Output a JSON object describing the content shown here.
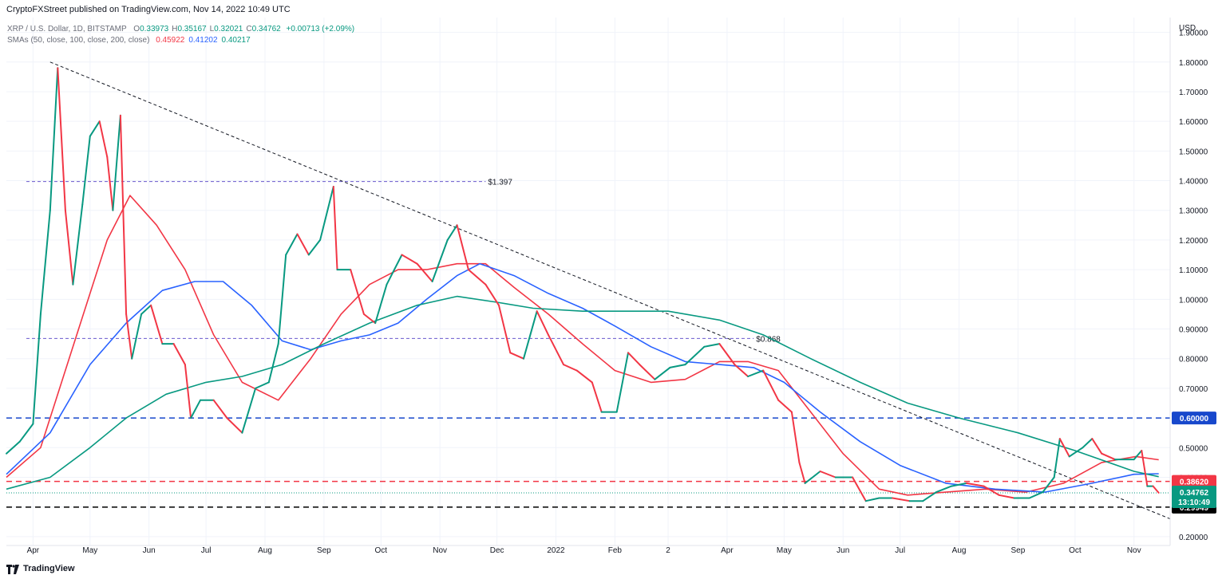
{
  "header": {
    "publisher_line": "CryptoFXStreet published on TradingView.com, Nov 14, 2022 10:49 UTC"
  },
  "footer": {
    "brand": "TradingView",
    "logo_icon": "tradingview-logo-icon"
  },
  "legend": {
    "symbol": "XRP / U.S. Dollar, 1D, BITSTAMP",
    "ohlc": [
      {
        "key": "O",
        "value": "0.33973"
      },
      {
        "key": "H",
        "value": "0.35167"
      },
      {
        "key": "L",
        "value": "0.32021"
      },
      {
        "key": "C",
        "value": "0.34762"
      }
    ],
    "change": "+0.00713 (+2.09%)",
    "sma_label": "SMAs (50, close, 100, close, 200, close)",
    "sma_values": [
      {
        "value": "0.45922",
        "color": "#f23645"
      },
      {
        "value": "0.41202",
        "color": "#2962ff"
      },
      {
        "value": "0.40217",
        "color": "#089981"
      }
    ]
  },
  "chart_data": {
    "type": "line",
    "title": "XRP / U.S. Dollar, 1D, BITSTAMP",
    "currency_label": "USD",
    "ylim": [
      0.17,
      1.95
    ],
    "y_ticks": [
      "0.20000",
      "0.30000",
      "0.40000",
      "0.50000",
      "0.60000",
      "0.70000",
      "0.80000",
      "0.90000",
      "1.00000",
      "1.10000",
      "1.20000",
      "1.30000",
      "1.40000",
      "1.50000",
      "1.60000",
      "1.70000",
      "1.80000",
      "1.90000"
    ],
    "x_ticks": [
      {
        "label": "Apr",
        "date": "2021-04-01"
      },
      {
        "label": "May",
        "date": "2021-05-01"
      },
      {
        "label": "Jun",
        "date": "2021-06-01"
      },
      {
        "label": "Jul",
        "date": "2021-07-01"
      },
      {
        "label": "Aug",
        "date": "2021-08-01"
      },
      {
        "label": "Sep",
        "date": "2021-09-01"
      },
      {
        "label": "Oct",
        "date": "2021-10-01"
      },
      {
        "label": "Nov",
        "date": "2021-11-01"
      },
      {
        "label": "Dec",
        "date": "2021-12-01"
      },
      {
        "label": "2022",
        "date": "2022-01-01"
      },
      {
        "label": "Feb",
        "date": "2022-02-01"
      },
      {
        "label": "2",
        "date": "2022-03-01"
      },
      {
        "label": "Apr",
        "date": "2022-04-01"
      },
      {
        "label": "May",
        "date": "2022-05-01"
      },
      {
        "label": "Jun",
        "date": "2022-06-01"
      },
      {
        "label": "Jul",
        "date": "2022-07-01"
      },
      {
        "label": "Aug",
        "date": "2022-08-01"
      },
      {
        "label": "Sep",
        "date": "2022-09-01"
      },
      {
        "label": "Oct",
        "date": "2022-10-01"
      },
      {
        "label": "Nov",
        "date": "2022-11-01"
      }
    ],
    "price_points": [
      [
        "2021-03-18",
        0.48
      ],
      [
        "2021-03-25",
        0.52
      ],
      [
        "2021-04-01",
        0.58
      ],
      [
        "2021-04-05",
        0.95
      ],
      [
        "2021-04-10",
        1.3
      ],
      [
        "2021-04-14",
        1.78
      ],
      [
        "2021-04-18",
        1.3
      ],
      [
        "2021-04-22",
        1.05
      ],
      [
        "2021-04-27",
        1.32
      ],
      [
        "2021-05-01",
        1.55
      ],
      [
        "2021-05-06",
        1.6
      ],
      [
        "2021-05-10",
        1.48
      ],
      [
        "2021-05-13",
        1.3
      ],
      [
        "2021-05-17",
        1.62
      ],
      [
        "2021-05-20",
        0.95
      ],
      [
        "2021-05-23",
        0.8
      ],
      [
        "2021-05-28",
        0.95
      ],
      [
        "2021-06-02",
        0.98
      ],
      [
        "2021-06-08",
        0.85
      ],
      [
        "2021-06-14",
        0.85
      ],
      [
        "2021-06-20",
        0.78
      ],
      [
        "2021-06-23",
        0.6
      ],
      [
        "2021-06-28",
        0.66
      ],
      [
        "2021-07-05",
        0.66
      ],
      [
        "2021-07-12",
        0.6
      ],
      [
        "2021-07-20",
        0.55
      ],
      [
        "2021-07-27",
        0.7
      ],
      [
        "2021-08-03",
        0.72
      ],
      [
        "2021-08-08",
        0.85
      ],
      [
        "2021-08-12",
        1.15
      ],
      [
        "2021-08-18",
        1.22
      ],
      [
        "2021-08-24",
        1.15
      ],
      [
        "2021-08-30",
        1.2
      ],
      [
        "2021-09-06",
        1.38
      ],
      [
        "2021-09-08",
        1.1
      ],
      [
        "2021-09-15",
        1.1
      ],
      [
        "2021-09-22",
        0.95
      ],
      [
        "2021-09-28",
        0.92
      ],
      [
        "2021-10-04",
        1.05
      ],
      [
        "2021-10-12",
        1.15
      ],
      [
        "2021-10-20",
        1.12
      ],
      [
        "2021-10-28",
        1.06
      ],
      [
        "2021-11-05",
        1.2
      ],
      [
        "2021-11-10",
        1.25
      ],
      [
        "2021-11-16",
        1.1
      ],
      [
        "2021-11-25",
        1.05
      ],
      [
        "2021-12-02",
        0.98
      ],
      [
        "2021-12-08",
        0.82
      ],
      [
        "2021-12-15",
        0.8
      ],
      [
        "2021-12-22",
        0.96
      ],
      [
        "2021-12-28",
        0.88
      ],
      [
        "2022-01-05",
        0.78
      ],
      [
        "2022-01-12",
        0.76
      ],
      [
        "2022-01-20",
        0.72
      ],
      [
        "2022-01-25",
        0.62
      ],
      [
        "2022-02-02",
        0.62
      ],
      [
        "2022-02-08",
        0.82
      ],
      [
        "2022-02-14",
        0.78
      ],
      [
        "2022-02-22",
        0.73
      ],
      [
        "2022-03-02",
        0.77
      ],
      [
        "2022-03-10",
        0.78
      ],
      [
        "2022-03-20",
        0.84
      ],
      [
        "2022-03-28",
        0.85
      ],
      [
        "2022-04-05",
        0.78
      ],
      [
        "2022-04-12",
        0.74
      ],
      [
        "2022-04-20",
        0.76
      ],
      [
        "2022-04-28",
        0.66
      ],
      [
        "2022-05-05",
        0.62
      ],
      [
        "2022-05-09",
        0.45
      ],
      [
        "2022-05-12",
        0.38
      ],
      [
        "2022-05-20",
        0.42
      ],
      [
        "2022-05-28",
        0.4
      ],
      [
        "2022-06-06",
        0.4
      ],
      [
        "2022-06-13",
        0.32
      ],
      [
        "2022-06-20",
        0.33
      ],
      [
        "2022-06-27",
        0.33
      ],
      [
        "2022-07-06",
        0.32
      ],
      [
        "2022-07-13",
        0.32
      ],
      [
        "2022-07-20",
        0.35
      ],
      [
        "2022-07-28",
        0.37
      ],
      [
        "2022-08-05",
        0.38
      ],
      [
        "2022-08-14",
        0.37
      ],
      [
        "2022-08-22",
        0.34
      ],
      [
        "2022-08-30",
        0.33
      ],
      [
        "2022-09-07",
        0.33
      ],
      [
        "2022-09-14",
        0.35
      ],
      [
        "2022-09-20",
        0.4
      ],
      [
        "2022-09-23",
        0.53
      ],
      [
        "2022-09-28",
        0.47
      ],
      [
        "2022-10-05",
        0.5
      ],
      [
        "2022-10-10",
        0.53
      ],
      [
        "2022-10-15",
        0.48
      ],
      [
        "2022-10-22",
        0.46
      ],
      [
        "2022-11-01",
        0.46
      ],
      [
        "2022-11-05",
        0.49
      ],
      [
        "2022-11-08",
        0.37
      ],
      [
        "2022-11-11",
        0.37
      ],
      [
        "2022-11-14",
        0.34762
      ]
    ],
    "series": [
      {
        "name": "SMA 50",
        "color": "#f23645",
        "values": [
          [
            "2021-03-18",
            0.4
          ],
          [
            "2021-04-05",
            0.5
          ],
          [
            "2021-04-25",
            0.9
          ],
          [
            "2021-05-10",
            1.2
          ],
          [
            "2021-05-22",
            1.35
          ],
          [
            "2021-06-05",
            1.25
          ],
          [
            "2021-06-20",
            1.1
          ],
          [
            "2021-07-05",
            0.88
          ],
          [
            "2021-07-20",
            0.72
          ],
          [
            "2021-08-08",
            0.66
          ],
          [
            "2021-08-25",
            0.8
          ],
          [
            "2021-09-10",
            0.95
          ],
          [
            "2021-09-25",
            1.05
          ],
          [
            "2021-10-10",
            1.1
          ],
          [
            "2021-10-25",
            1.1
          ],
          [
            "2021-11-10",
            1.12
          ],
          [
            "2021-11-25",
            1.12
          ],
          [
            "2021-12-10",
            1.04
          ],
          [
            "2021-12-28",
            0.95
          ],
          [
            "2022-01-15",
            0.85
          ],
          [
            "2022-02-01",
            0.76
          ],
          [
            "2022-02-20",
            0.72
          ],
          [
            "2022-03-10",
            0.73
          ],
          [
            "2022-03-28",
            0.79
          ],
          [
            "2022-04-12",
            0.79
          ],
          [
            "2022-04-28",
            0.76
          ],
          [
            "2022-05-15",
            0.62
          ],
          [
            "2022-06-01",
            0.48
          ],
          [
            "2022-06-20",
            0.36
          ],
          [
            "2022-07-05",
            0.34
          ],
          [
            "2022-07-25",
            0.35
          ],
          [
            "2022-08-15",
            0.36
          ],
          [
            "2022-09-05",
            0.35
          ],
          [
            "2022-09-25",
            0.38
          ],
          [
            "2022-10-15",
            0.45
          ],
          [
            "2022-11-02",
            0.47
          ],
          [
            "2022-11-14",
            0.459
          ]
        ]
      },
      {
        "name": "SMA 100",
        "color": "#2962ff",
        "values": [
          [
            "2021-03-18",
            0.41
          ],
          [
            "2021-04-10",
            0.55
          ],
          [
            "2021-05-01",
            0.78
          ],
          [
            "2021-05-20",
            0.92
          ],
          [
            "2021-06-08",
            1.03
          ],
          [
            "2021-06-25",
            1.06
          ],
          [
            "2021-07-10",
            1.06
          ],
          [
            "2021-07-25",
            0.98
          ],
          [
            "2021-08-10",
            0.86
          ],
          [
            "2021-08-25",
            0.83
          ],
          [
            "2021-09-10",
            0.86
          ],
          [
            "2021-09-25",
            0.88
          ],
          [
            "2021-10-10",
            0.92
          ],
          [
            "2021-10-25",
            1.0
          ],
          [
            "2021-11-10",
            1.08
          ],
          [
            "2021-11-22",
            1.12
          ],
          [
            "2021-12-10",
            1.08
          ],
          [
            "2021-12-28",
            1.02
          ],
          [
            "2022-01-15",
            0.97
          ],
          [
            "2022-02-01",
            0.91
          ],
          [
            "2022-02-20",
            0.84
          ],
          [
            "2022-03-10",
            0.79
          ],
          [
            "2022-03-28",
            0.78
          ],
          [
            "2022-04-15",
            0.77
          ],
          [
            "2022-05-01",
            0.72
          ],
          [
            "2022-05-20",
            0.62
          ],
          [
            "2022-06-10",
            0.52
          ],
          [
            "2022-07-01",
            0.44
          ],
          [
            "2022-07-25",
            0.38
          ],
          [
            "2022-08-20",
            0.36
          ],
          [
            "2022-09-15",
            0.35
          ],
          [
            "2022-10-10",
            0.38
          ],
          [
            "2022-11-01",
            0.41
          ],
          [
            "2022-11-14",
            0.412
          ]
        ]
      },
      {
        "name": "SMA 200",
        "color": "#089981",
        "values": [
          [
            "2021-03-18",
            0.36
          ],
          [
            "2021-04-10",
            0.4
          ],
          [
            "2021-05-01",
            0.5
          ],
          [
            "2021-05-20",
            0.6
          ],
          [
            "2021-06-10",
            0.68
          ],
          [
            "2021-07-01",
            0.72
          ],
          [
            "2021-07-20",
            0.74
          ],
          [
            "2021-08-10",
            0.78
          ],
          [
            "2021-09-01",
            0.85
          ],
          [
            "2021-09-25",
            0.92
          ],
          [
            "2021-10-20",
            0.98
          ],
          [
            "2021-11-10",
            1.01
          ],
          [
            "2021-12-01",
            0.99
          ],
          [
            "2021-12-20",
            0.97
          ],
          [
            "2022-01-15",
            0.96
          ],
          [
            "2022-02-10",
            0.96
          ],
          [
            "2022-03-01",
            0.96
          ],
          [
            "2022-03-28",
            0.93
          ],
          [
            "2022-04-20",
            0.88
          ],
          [
            "2022-05-15",
            0.8
          ],
          [
            "2022-06-10",
            0.72
          ],
          [
            "2022-07-05",
            0.65
          ],
          [
            "2022-08-01",
            0.6
          ],
          [
            "2022-09-01",
            0.55
          ],
          [
            "2022-10-01",
            0.49
          ],
          [
            "2022-11-01",
            0.42
          ],
          [
            "2022-11-14",
            0.402
          ]
        ]
      }
    ],
    "horizontal_levels": [
      {
        "value": 0.6,
        "color": "#1848cc",
        "style": "dashed",
        "badge": "0.60000"
      },
      {
        "value": 0.3862,
        "color": "#f23645",
        "style": "dashed",
        "badge": "0.38620"
      },
      {
        "value": 0.29949,
        "color": "#000000",
        "style": "dashed",
        "badge": "0.29949"
      }
    ],
    "last_price_badge": {
      "value": 0.34762,
      "label": "0.34762",
      "countdown": "13:10:49",
      "color": "#089981"
    },
    "annotations": [
      {
        "label": "$1.397",
        "value": 1.397,
        "from": "2021-03-18",
        "to": "2021-11-25"
      },
      {
        "label": "$0.868",
        "value": 0.868,
        "from": "2021-03-18",
        "to": "2022-04-15"
      }
    ],
    "trendline": {
      "from": [
        "2021-04-10",
        1.8
      ],
      "to": [
        "2022-11-20",
        0.26
      ],
      "color": "#131722",
      "style": "dashed"
    }
  }
}
